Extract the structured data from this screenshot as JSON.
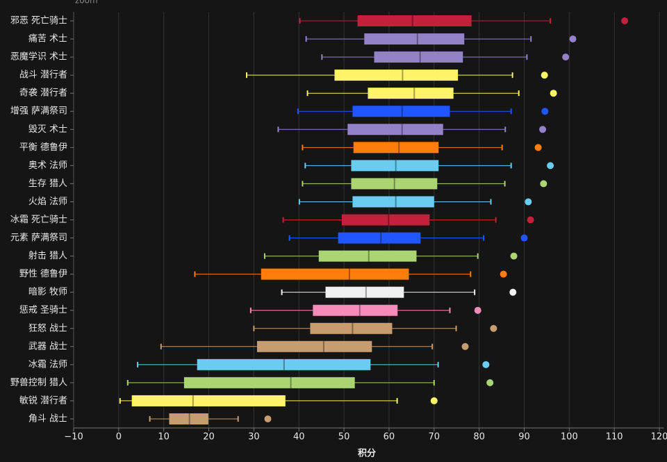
{
  "chart_data": {
    "type": "boxplot",
    "zoom_label": "zoom",
    "x_label": "积分",
    "categories": [
      "邪恶 死亡骑士",
      "痛苦 术士",
      "恶魔学识 术士",
      "战斗 潜行者",
      "奇袭 潜行者",
      "增强 萨满祭司",
      "毁灭 术士",
      "平衡 德鲁伊",
      "奥术 法师",
      "生存 猎人",
      "火焰 法师",
      "冰霜 死亡骑士",
      "元素 萨满祭司",
      "射击 猎人",
      "野性 德鲁伊",
      "暗影 牧师",
      "惩戒 圣骑士",
      "狂怒 战士",
      "武器 战士",
      "冰霜 法师",
      "野兽控制 猎人",
      "敏锐 潜行者",
      "角斗 战士"
    ],
    "colors": [
      "#c41f3b",
      "#9482c9",
      "#9482c9",
      "#fff468",
      "#fff468",
      "#1f56ff",
      "#9482c9",
      "#ff7d0a",
      "#69ccf0",
      "#abd473",
      "#69ccf0",
      "#c41f3b",
      "#1f56ff",
      "#abd473",
      "#ff7d0a",
      "#f0f0f0",
      "#f58cba",
      "#c79c6e",
      "#c79c6e",
      "#69ccf0",
      "#abd473",
      "#fff468",
      "#c79c6e"
    ],
    "low": [
      40.2,
      41.6,
      45.1,
      28.4,
      41.9,
      39.8,
      35.4,
      40.8,
      41.4,
      40.8,
      40.1,
      36.5,
      37.9,
      32.4,
      16.9,
      36.2,
      29.3,
      30.0,
      9.4,
      4.2,
      2.0,
      0.3,
      6.9
    ],
    "q1": [
      53.0,
      54.5,
      56.7,
      47.9,
      55.3,
      51.9,
      50.8,
      52.1,
      51.6,
      51.6,
      51.9,
      49.5,
      48.7,
      44.4,
      31.6,
      45.9,
      43.1,
      42.5,
      30.7,
      17.4,
      14.5,
      2.9,
      11.2
    ],
    "median": [
      65.2,
      66.3,
      66.9,
      63.0,
      65.6,
      62.9,
      62.9,
      62.2,
      61.5,
      61.2,
      61.5,
      59.9,
      58.2,
      55.5,
      51.2,
      54.9,
      53.5,
      51.9,
      45.5,
      36.7,
      38.2,
      16.5,
      15.7
    ],
    "q3": [
      78.3,
      76.7,
      76.4,
      75.3,
      74.3,
      73.5,
      72.0,
      71.0,
      71.0,
      70.7,
      70.0,
      69.0,
      67.0,
      66.1,
      64.4,
      63.3,
      61.9,
      60.7,
      56.2,
      55.9,
      52.4,
      37.0,
      19.9
    ],
    "high": [
      95.8,
      91.5,
      90.6,
      87.4,
      88.8,
      87.1,
      85.8,
      85.1,
      87.1,
      85.7,
      82.6,
      83.7,
      81.0,
      79.7,
      78.1,
      79.0,
      73.5,
      74.9,
      69.6,
      70.9,
      70.0,
      61.8,
      26.5
    ],
    "outliers": [
      112.3,
      100.8,
      99.2,
      94.5,
      96.5,
      94.6,
      94.1,
      93.1,
      95.8,
      94.3,
      90.9,
      91.4,
      90.0,
      87.7,
      85.4,
      87.5,
      79.7,
      83.2,
      76.9,
      81.5,
      82.4,
      70.0,
      33.1
    ],
    "xlim": [
      -10,
      121
    ],
    "xticks": [
      {
        "value": -10,
        "label": "−10"
      },
      0,
      10,
      20,
      30,
      40,
      50,
      60,
      70,
      80,
      90,
      100,
      110,
      120
    ],
    "grid": true
  }
}
